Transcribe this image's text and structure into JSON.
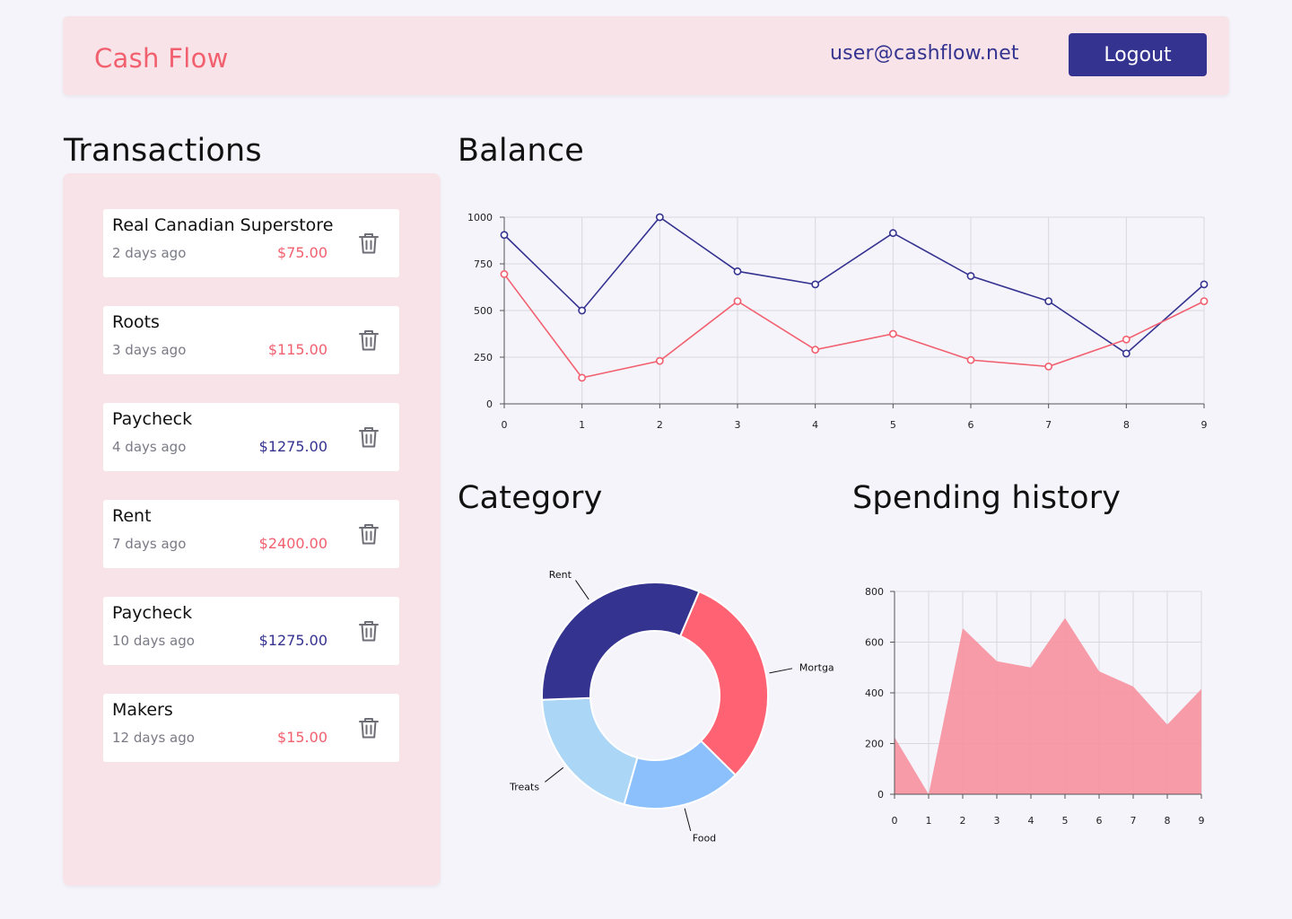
{
  "header": {
    "logo": "Cash Flow",
    "user_email": "user@cashflow.net",
    "logout_label": "Logout"
  },
  "transactions": {
    "title": "Transactions",
    "items": [
      {
        "name": "Real Canadian Superstore",
        "date": "2 days ago",
        "amount": "$75.00",
        "type": "debit"
      },
      {
        "name": "Roots",
        "date": "3 days ago",
        "amount": "$115.00",
        "type": "debit"
      },
      {
        "name": "Paycheck",
        "date": "4 days ago",
        "amount": "$1275.00",
        "type": "credit"
      },
      {
        "name": "Rent",
        "date": "7 days ago",
        "amount": "$2400.00",
        "type": "debit"
      },
      {
        "name": "Paycheck",
        "date": "10 days ago",
        "amount": "$1275.00",
        "type": "credit"
      },
      {
        "name": "Makers",
        "date": "12 days ago",
        "amount": "$15.00",
        "type": "debit"
      }
    ]
  },
  "balance": {
    "title": "Balance"
  },
  "category": {
    "title": "Category"
  },
  "spending": {
    "title": "Spending history"
  },
  "colors": {
    "brand": "#f2606f",
    "primary": "#353390",
    "light_blue": "#8bc0fc",
    "pale_blue": "#acd6f6",
    "area_pink": "#f7919f"
  },
  "chart_data": [
    {
      "type": "line",
      "x": [
        0,
        1,
        2,
        3,
        4,
        5,
        6,
        7,
        8,
        9
      ],
      "series": [
        {
          "values": [
            905,
            500,
            1000,
            710,
            640,
            915,
            685,
            550,
            270,
            640
          ],
          "color": "#353390"
        },
        {
          "values": [
            695,
            140,
            230,
            550,
            290,
            375,
            235,
            200,
            345,
            550
          ],
          "color": "#f2606f"
        }
      ],
      "ylim": [
        0,
        1000
      ],
      "yticks": [
        0,
        250,
        500,
        750,
        1000
      ],
      "grid": true
    },
    {
      "type": "pie",
      "donut": true,
      "labels": [
        "Mortgage",
        "Food",
        "Treats",
        "Rent"
      ],
      "values": [
        31,
        17,
        20,
        32
      ],
      "colors": [
        "#ff6272",
        "#8bc0fc",
        "#acd6f6",
        "#353390"
      ]
    },
    {
      "type": "area",
      "x": [
        0,
        1,
        2,
        3,
        4,
        5,
        6,
        7,
        8,
        9
      ],
      "values": [
        225,
        0,
        655,
        525,
        500,
        695,
        485,
        425,
        275,
        415
      ],
      "ylim": [
        0,
        800
      ],
      "yticks": [
        0,
        200,
        400,
        600,
        800
      ],
      "grid": true,
      "color": "#f7919f"
    }
  ]
}
